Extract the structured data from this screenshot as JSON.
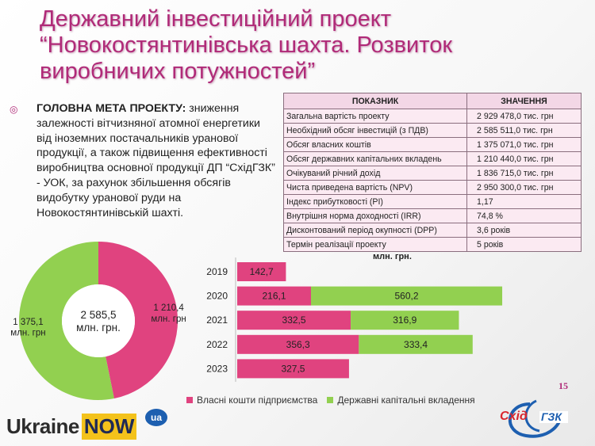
{
  "title": "Державний інвестиційний проект “Новокостянтинівська шахта. Розвиток виробничих потужностей”",
  "goal": {
    "label": "ГОЛОВНА МЕТА ПРОЕКТУ:",
    "text": " зниження залежності вітчизняної атомної енергетики від іноземних постачальників уранової продукції, а також підвищення ефективності виробництва основної продукції ДП “СхідГЗК” - УОК, за рахунок збільшення обсягів видобутку уранової руди на Новокостянтинівській шахті."
  },
  "table": {
    "headers": [
      "ПОКАЗНИК",
      "ЗНАЧЕННЯ"
    ],
    "rows": [
      {
        "label": "Загальна вартість проекту",
        "value": "2 929 478,0 тис. грн"
      },
      {
        "label": "Необхідний обсяг інвестицій (з ПДВ)",
        "value": "2 585 511,0 тис. грн"
      },
      {
        "label": "Обсяг власних коштів",
        "value": "1 375 071,0 тис. грн"
      },
      {
        "label": "Обсяг державних капітальних вкладень",
        "value": "1 210 440,0 тис. грн"
      },
      {
        "label": "Очікуваний річний дохід",
        "value": "1 836 715,0 тис. грн"
      },
      {
        "label": "Чиста приведена вартість (NPV)",
        "value": "2 950 300,0 тис. грн"
      },
      {
        "label": "Індекс прибутковості (PI)",
        "value": "1,17"
      },
      {
        "label": "Внутрішня норма доходності (IRR)",
        "value": "74,8 %"
      },
      {
        "label": "Дисконтований період окупності (DPP)",
        "value": "3,6 років"
      },
      {
        "label": "Термін реалізації проекту",
        "value": "5 років"
      }
    ]
  },
  "colors": {
    "pink": "#e0437f",
    "green": "#92d050",
    "title": "#b02a78"
  },
  "chart_data": [
    {
      "type": "pie",
      "title": "",
      "center_label": "2 585,5\nмлн. грн.",
      "slices": [
        {
          "label": "1 210,4\nмлн. грн",
          "value": 1210.4,
          "color": "#e0437f"
        },
        {
          "label": "1 375,1\nмлн. грн",
          "value": 1375.1,
          "color": "#92d050"
        }
      ]
    },
    {
      "type": "bar",
      "orientation": "horizontal",
      "stacked": true,
      "title": "млн. грн.",
      "categories": [
        "2019",
        "2020",
        "2021",
        "2022",
        "2023"
      ],
      "series": [
        {
          "name": "Власні кошти підприємства",
          "color": "#e0437f",
          "values": [
            142.7,
            216.1,
            332.5,
            356.3,
            327.5
          ],
          "labels": [
            "142,7",
            "216,1",
            "332,5",
            "356,3",
            "327,5"
          ]
        },
        {
          "name": "Державні капітальні вкладення",
          "color": "#92d050",
          "values": [
            0,
            560.2,
            316.9,
            333.4,
            0
          ],
          "labels": [
            "",
            "560,2",
            "316,9",
            "333,4",
            ""
          ]
        }
      ],
      "legend": "bottom"
    }
  ],
  "page_number": "15",
  "logos": {
    "ukraine": "Ukraine",
    "now": "NOW",
    "ua": "ua",
    "shid": "Схід",
    "gzk": "ГЗК"
  }
}
